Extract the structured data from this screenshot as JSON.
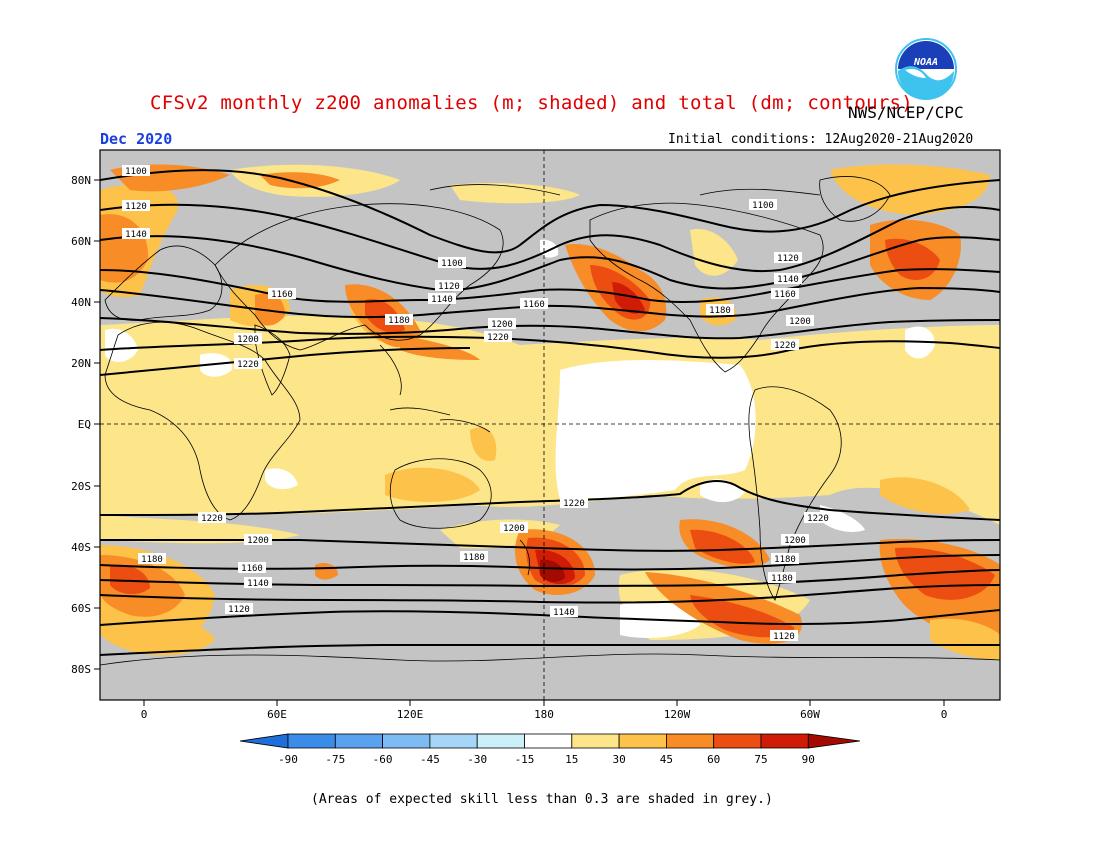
{
  "header": {
    "title": "CFSv2 monthly z200 anomalies (m; shaded) and total (dm; contours)",
    "agency": "NWS/NCEP/CPC",
    "month": "Dec 2020",
    "initial_conditions": "Initial conditions: 12Aug2020-21Aug2020",
    "logo_text": "NOAA"
  },
  "map": {
    "lat_labels": [
      "80N",
      "60N",
      "40N",
      "20N",
      "EQ",
      "20S",
      "40S",
      "60S",
      "80S"
    ],
    "lon_labels": [
      "0",
      "60E",
      "120E",
      "180",
      "120W",
      "60W",
      "0"
    ],
    "contour_labels": [
      "1100",
      "1120",
      "1140",
      "1160",
      "1180",
      "1200",
      "1220"
    ],
    "colors": {
      "grey_low_skill": "#c4c4c4",
      "land_outline": "#000000"
    }
  },
  "colorbar": {
    "labels": [
      "-90",
      "-75",
      "-60",
      "-45",
      "-30",
      "-15",
      "15",
      "30",
      "45",
      "60",
      "75",
      "90"
    ],
    "colors": [
      "#1e6fd9",
      "#3b8be8",
      "#5aa2ef",
      "#7fbbf3",
      "#a6d6f7",
      "#ccf0fa",
      "#ffffff",
      "#fde58a",
      "#fcc24a",
      "#f88c26",
      "#ec4d11",
      "#d01c06",
      "#a30b02"
    ]
  },
  "footnote": "(Areas of expected skill less than 0.3 are shaded in grey.)"
}
